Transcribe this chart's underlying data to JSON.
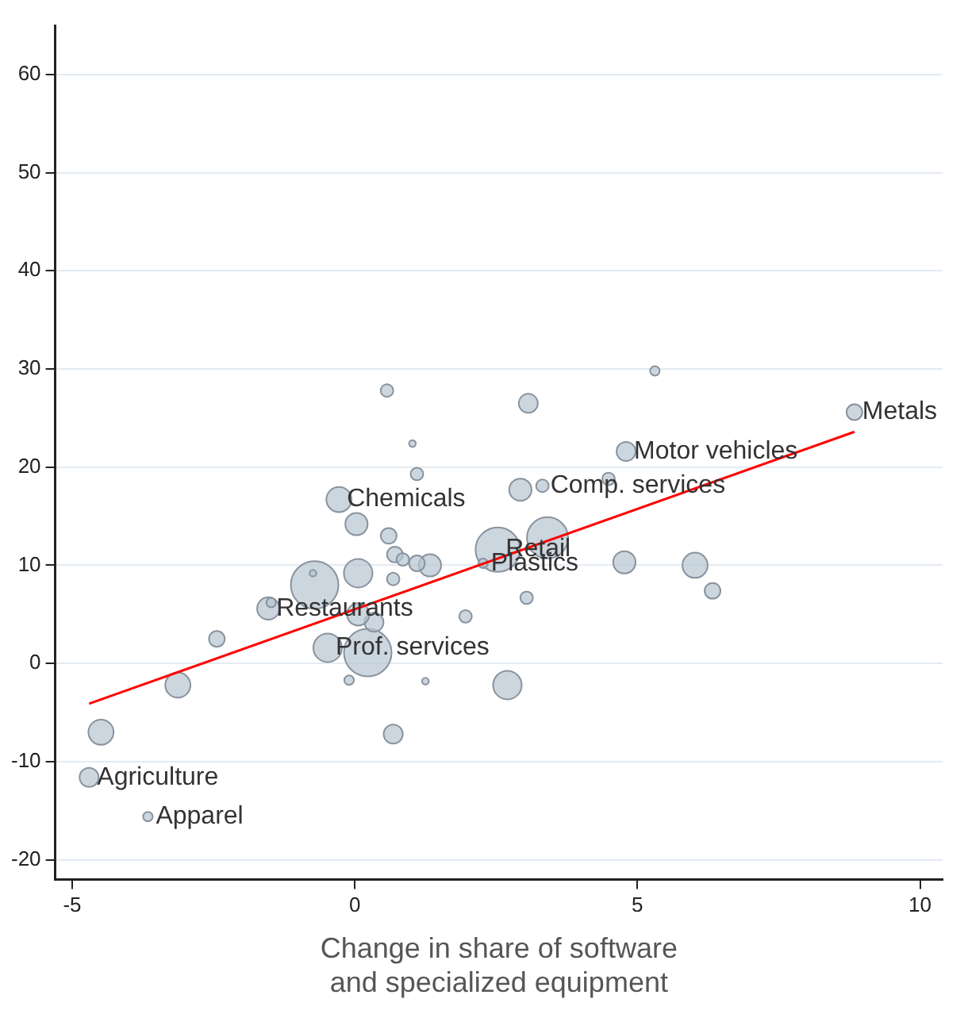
{
  "chart_data": {
    "type": "bubble",
    "xlabel": "Change in share of software and specialized equipment",
    "xlim": [
      -5.3,
      10.4
    ],
    "xticks": [
      -5,
      0,
      5,
      10
    ],
    "ylim": [
      -22,
      65
    ],
    "yticks": [
      -20,
      -10,
      0,
      10,
      20,
      30,
      40,
      50,
      60
    ],
    "grid": "y",
    "legend": false,
    "series": [
      {
        "color": "#b7c4d2",
        "x": [
          -4.7,
          -3.66,
          -4.49,
          -3.13,
          -2.44,
          -1.53,
          -1.48,
          -0.71,
          -0.74,
          0.06,
          0.68,
          -0.28,
          0.03,
          0.57,
          1.02,
          1.1,
          0.6,
          0.71,
          1.33,
          1.1,
          0.85,
          2.53,
          3.41,
          1.96,
          3.04,
          2.7,
          4.77,
          6.02,
          6.33,
          5.31,
          3.07,
          2.93,
          3.32,
          4.49,
          4.8,
          8.84,
          -0.48,
          0.23,
          -0.1,
          1.25,
          0.68,
          0.34,
          0.06,
          2.27
        ],
        "values": [
          -11.6,
          -15.6,
          -7.0,
          -2.2,
          2.5,
          5.6,
          6.2,
          8.0,
          9.2,
          9.2,
          8.6,
          16.7,
          14.2,
          27.8,
          22.4,
          19.3,
          13.0,
          11.1,
          10.0,
          10.2,
          10.6,
          11.6,
          12.8,
          4.8,
          6.7,
          -2.2,
          10.3,
          10.0,
          7.4,
          29.8,
          26.5,
          17.7,
          18.1,
          18.8,
          21.6,
          25.6,
          1.6,
          1.1,
          -1.7,
          -1.8,
          -7.2,
          4.2,
          5.0,
          10.2
        ],
        "sizes": [
          0.16,
          0.04,
          0.28,
          0.28,
          0.11,
          0.22,
          0.04,
          1,
          0.02,
          0.36,
          0.07,
          0.28,
          0.22,
          0.07,
          0.02,
          0.07,
          0.11,
          0.11,
          0.22,
          0.11,
          0.07,
          0.87,
          0.75,
          0.07,
          0.07,
          0.36,
          0.22,
          0.28,
          0.11,
          0.04,
          0.16,
          0.22,
          0.07,
          0.07,
          0.16,
          0.11,
          0.36,
          1,
          0.04,
          0.02,
          0.16,
          0.16,
          0.22,
          0.04
        ]
      },
      {
        "type": "line",
        "color": "#ff0000",
        "x": [
          -4.7,
          8.84
        ],
        "values": [
          -4.1,
          23.6
        ]
      }
    ],
    "annotations": [
      {
        "text": "Agriculture",
        "x": -4.7,
        "y": -11.6
      },
      {
        "text": "Apparel",
        "x": -3.66,
        "y": -15.6
      },
      {
        "text": "Restaurants",
        "x": -1.53,
        "y": 5.6
      },
      {
        "text": "Chemicals",
        "x": -0.28,
        "y": 16.7
      },
      {
        "text": "Prof. services",
        "x": -0.48,
        "y": 1.6
      },
      {
        "text": "Retail",
        "x": 2.53,
        "y": 11.6
      },
      {
        "text": "Plastics",
        "x": 2.27,
        "y": 10.2
      },
      {
        "text": "Comp. services",
        "x": 3.32,
        "y": 18.1
      },
      {
        "text": "Motor vehicles",
        "x": 4.8,
        "y": 21.6
      },
      {
        "text": "Metals",
        "x": 8.84,
        "y": 25.6
      }
    ]
  }
}
